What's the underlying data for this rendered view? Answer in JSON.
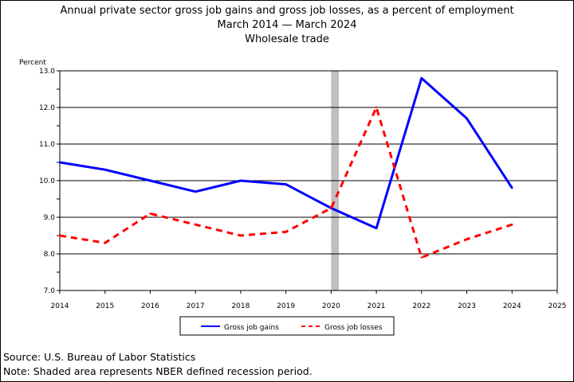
{
  "title_lines": [
    "Annual private sector gross job gains and gross job losses, as a percent of employment",
    "March 2014 — March 2024",
    "Wholesale trade"
  ],
  "footer": {
    "source": "Source: U.S. Bureau of Labor Statistics",
    "note": "Note: Shaded area represents NBER defined recession period."
  },
  "chart_data": {
    "type": "line",
    "ylabel": "Percent",
    "xlim": [
      2014,
      2025
    ],
    "ylim": [
      7.0,
      13.0
    ],
    "x_ticks": [
      "2014",
      "2015",
      "2016",
      "2017",
      "2018",
      "2019",
      "2020",
      "2021",
      "2022",
      "2023",
      "2024",
      "2025"
    ],
    "y_ticks": [
      "7.0",
      "8.0",
      "9.0",
      "10.0",
      "11.0",
      "12.0",
      "13.0"
    ],
    "grid": true,
    "legend_position": "bottom",
    "recession_shading": [
      2020.0,
      2020.17
    ],
    "series": [
      {
        "name": "Gross job gains",
        "color": "#0000ff",
        "dash": "solid",
        "x": [
          2014,
          2015,
          2016,
          2017,
          2018,
          2019,
          2020,
          2021,
          2022,
          2023,
          2024
        ],
        "values": [
          10.5,
          10.3,
          10.0,
          9.7,
          10.0,
          9.9,
          9.25,
          8.7,
          12.8,
          11.7,
          9.8
        ]
      },
      {
        "name": "Gross job losses",
        "color": "#ff0000",
        "dash": "dashed",
        "x": [
          2014,
          2015,
          2016,
          2017,
          2018,
          2019,
          2020,
          2021,
          2022,
          2023,
          2024
        ],
        "values": [
          8.5,
          8.3,
          9.1,
          8.8,
          8.5,
          8.6,
          9.25,
          12.0,
          7.9,
          8.4,
          8.8
        ]
      }
    ]
  }
}
